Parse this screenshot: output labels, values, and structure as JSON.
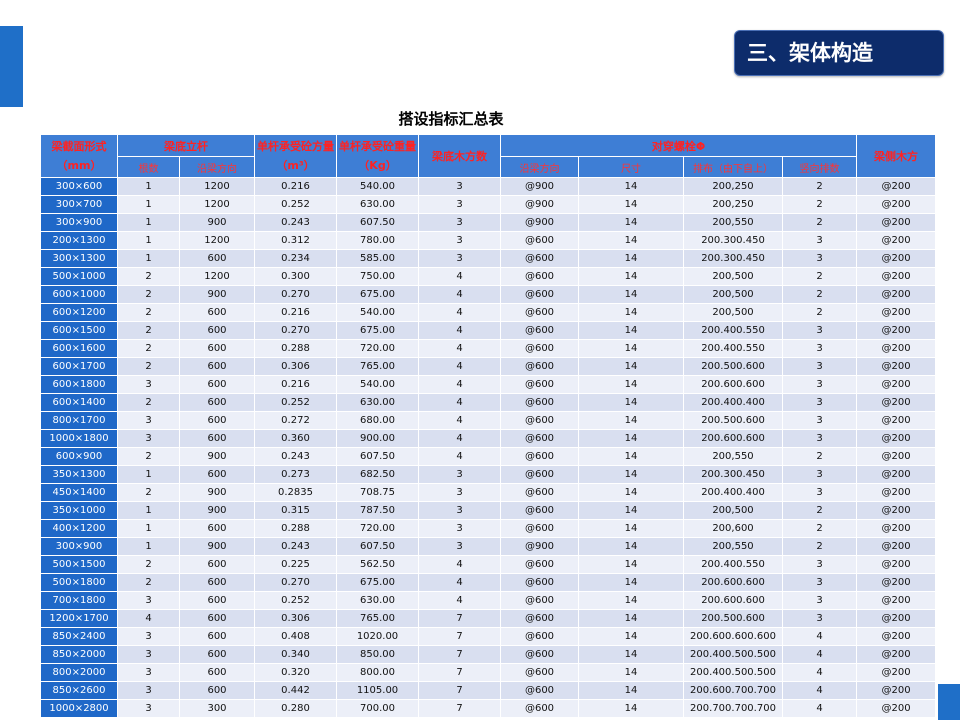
{
  "section_title": "三、架体构造",
  "table": {
    "title": "搭设指标汇总表",
    "headers": {
      "beam_section": "梁截面形式（mm）",
      "beam_pole": "梁底立杆",
      "pole_count": "根数",
      "pole_spacing": "沿梁方向",
      "single_volume": "单杆承受砼方量（m³）",
      "single_weight": "单杆承受砼重量（Kg）",
      "bottom_wood": "梁底木方数",
      "bolt": "对穿螺栓Φ",
      "bolt_spacing": "沿梁方向",
      "bolt_size": "尺寸",
      "bolt_layout": "排布（由下自上）",
      "bolt_rows": "竖向排数",
      "side_wood": "梁侧木方"
    },
    "rows": [
      [
        "300×600",
        "1",
        "1200",
        "0.216",
        "540.00",
        "3",
        "@900",
        "14",
        "200,250",
        "2",
        "@200"
      ],
      [
        "300×700",
        "1",
        "1200",
        "0.252",
        "630.00",
        "3",
        "@900",
        "14",
        "200,250",
        "2",
        "@200"
      ],
      [
        "300×900",
        "1",
        "900",
        "0.243",
        "607.50",
        "3",
        "@900",
        "14",
        "200,550",
        "2",
        "@200"
      ],
      [
        "200×1300",
        "1",
        "1200",
        "0.312",
        "780.00",
        "3",
        "@600",
        "14",
        "200.300.450",
        "3",
        "@200"
      ],
      [
        "300×1300",
        "1",
        "600",
        "0.234",
        "585.00",
        "3",
        "@600",
        "14",
        "200.300.450",
        "3",
        "@200"
      ],
      [
        "500×1000",
        "2",
        "1200",
        "0.300",
        "750.00",
        "4",
        "@600",
        "14",
        "200,500",
        "2",
        "@200"
      ],
      [
        "600×1000",
        "2",
        "900",
        "0.270",
        "675.00",
        "4",
        "@600",
        "14",
        "200,500",
        "2",
        "@200"
      ],
      [
        "600×1200",
        "2",
        "600",
        "0.216",
        "540.00",
        "4",
        "@600",
        "14",
        "200,500",
        "2",
        "@200"
      ],
      [
        "600×1500",
        "2",
        "600",
        "0.270",
        "675.00",
        "4",
        "@600",
        "14",
        "200.400.550",
        "3",
        "@200"
      ],
      [
        "600×1600",
        "2",
        "600",
        "0.288",
        "720.00",
        "4",
        "@600",
        "14",
        "200.400.550",
        "3",
        "@200"
      ],
      [
        "600×1700",
        "2",
        "600",
        "0.306",
        "765.00",
        "4",
        "@600",
        "14",
        "200.500.600",
        "3",
        "@200"
      ],
      [
        "600×1800",
        "3",
        "600",
        "0.216",
        "540.00",
        "4",
        "@600",
        "14",
        "200.600.600",
        "3",
        "@200"
      ],
      [
        "600×1400",
        "2",
        "600",
        "0.252",
        "630.00",
        "4",
        "@600",
        "14",
        "200.400.400",
        "3",
        "@200"
      ],
      [
        "800×1700",
        "3",
        "600",
        "0.272",
        "680.00",
        "4",
        "@600",
        "14",
        "200.500.600",
        "3",
        "@200"
      ],
      [
        "1000×1800",
        "3",
        "600",
        "0.360",
        "900.00",
        "4",
        "@600",
        "14",
        "200.600.600",
        "3",
        "@200"
      ],
      [
        "600×900",
        "2",
        "900",
        "0.243",
        "607.50",
        "4",
        "@600",
        "14",
        "200,550",
        "2",
        "@200"
      ],
      [
        "350×1300",
        "1",
        "600",
        "0.273",
        "682.50",
        "3",
        "@600",
        "14",
        "200.300.450",
        "3",
        "@200"
      ],
      [
        "450×1400",
        "2",
        "900",
        "0.2835",
        "708.75",
        "3",
        "@600",
        "14",
        "200.400.400",
        "3",
        "@200"
      ],
      [
        "350×1000",
        "1",
        "900",
        "0.315",
        "787.50",
        "3",
        "@600",
        "14",
        "200,500",
        "2",
        "@200"
      ],
      [
        "400×1200",
        "1",
        "600",
        "0.288",
        "720.00",
        "3",
        "@600",
        "14",
        "200,600",
        "2",
        "@200"
      ],
      [
        "300×900",
        "1",
        "900",
        "0.243",
        "607.50",
        "3",
        "@900",
        "14",
        "200,550",
        "2",
        "@200"
      ],
      [
        "500×1500",
        "2",
        "600",
        "0.225",
        "562.50",
        "4",
        "@600",
        "14",
        "200.400.550",
        "3",
        "@200"
      ],
      [
        "500×1800",
        "2",
        "600",
        "0.270",
        "675.00",
        "4",
        "@600",
        "14",
        "200.600.600",
        "3",
        "@200"
      ],
      [
        "700×1800",
        "3",
        "600",
        "0.252",
        "630.00",
        "4",
        "@600",
        "14",
        "200.600.600",
        "3",
        "@200"
      ],
      [
        "1200×1700",
        "4",
        "600",
        "0.306",
        "765.00",
        "7",
        "@600",
        "14",
        "200.500.600",
        "3",
        "@200"
      ],
      [
        "850×2400",
        "3",
        "600",
        "0.408",
        "1020.00",
        "7",
        "@600",
        "14",
        "200.600.600.600",
        "4",
        "@200"
      ],
      [
        "850×2000",
        "3",
        "600",
        "0.340",
        "850.00",
        "7",
        "@600",
        "14",
        "200.400.500.500",
        "4",
        "@200"
      ],
      [
        "800×2000",
        "3",
        "600",
        "0.320",
        "800.00",
        "7",
        "@600",
        "14",
        "200.400.500.500",
        "4",
        "@200"
      ],
      [
        "850×2600",
        "3",
        "600",
        "0.442",
        "1105.00",
        "7",
        "@600",
        "14",
        "200.600.700.700",
        "4",
        "@200"
      ],
      [
        "1000×2800",
        "3",
        "300",
        "0.280",
        "700.00",
        "7",
        "@600",
        "14",
        "200.700.700.700",
        "4",
        "@200"
      ]
    ]
  }
}
